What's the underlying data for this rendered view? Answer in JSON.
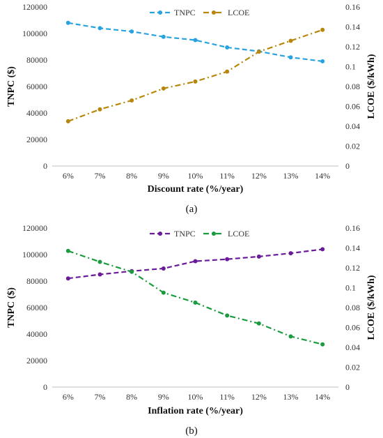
{
  "chart_data": [
    {
      "type": "line",
      "caption": "(a)",
      "xlabel": "Discount rate (%/year)",
      "ylabel": "TNPC ($)",
      "y2label": "LCOE ($/kWh)",
      "categories": [
        "6%",
        "7%",
        "8%",
        "9%",
        "10%",
        "11%",
        "12%",
        "13%",
        "14%"
      ],
      "ylim": [
        0,
        120000
      ],
      "y_ticks": [
        "0",
        "20000",
        "40000",
        "60000",
        "80000",
        "100000",
        "120000"
      ],
      "y2lim": [
        0,
        0.16
      ],
      "y2_ticks": [
        "0",
        "0.02",
        "0.04",
        "0.06",
        "0.08",
        "0.1",
        "0.12",
        "0.14",
        "0.16"
      ],
      "legend_position": "top-center",
      "series": [
        {
          "name": "TNPC",
          "axis": "left",
          "color": "#29a3e0",
          "dash": "dashed",
          "values": [
            108000,
            104000,
            101500,
            97500,
            95000,
            89500,
            86500,
            82000,
            79000
          ]
        },
        {
          "name": "LCOE",
          "axis": "right",
          "color": "#b8860b",
          "dash": "dashdot",
          "values": [
            0.045,
            0.057,
            0.066,
            0.078,
            0.085,
            0.095,
            0.115,
            0.126,
            0.137
          ]
        }
      ]
    },
    {
      "type": "line",
      "caption": "(b)",
      "xlabel": "Inflation rate (%/year)",
      "ylabel": "TNPC ($)",
      "y2label": "LCOE ($/kWh)",
      "categories": [
        "6%",
        "7%",
        "8%",
        "9%",
        "10%",
        "11%",
        "12%",
        "13%",
        "14%"
      ],
      "ylim": [
        0,
        120000
      ],
      "y_ticks": [
        "0",
        "20000",
        "40000",
        "60000",
        "80000",
        "100000",
        "120000"
      ],
      "y2lim": [
        0,
        0.16
      ],
      "y2_ticks": [
        "0",
        "0.02",
        "0.04",
        "0.06",
        "0.08",
        "0.1",
        "0.12",
        "0.14",
        "0.16"
      ],
      "legend_position": "top-center",
      "series": [
        {
          "name": "TNPC",
          "axis": "left",
          "color": "#6a1b9a",
          "dash": "dashed",
          "values": [
            82000,
            85000,
            87500,
            89500,
            95000,
            96500,
            98500,
            101000,
            104000
          ]
        },
        {
          "name": "LCOE",
          "axis": "right",
          "color": "#1a9c3e",
          "dash": "dashdot",
          "values": [
            0.137,
            0.126,
            0.116,
            0.095,
            0.085,
            0.072,
            0.064,
            0.051,
            0.043
          ]
        }
      ]
    }
  ]
}
